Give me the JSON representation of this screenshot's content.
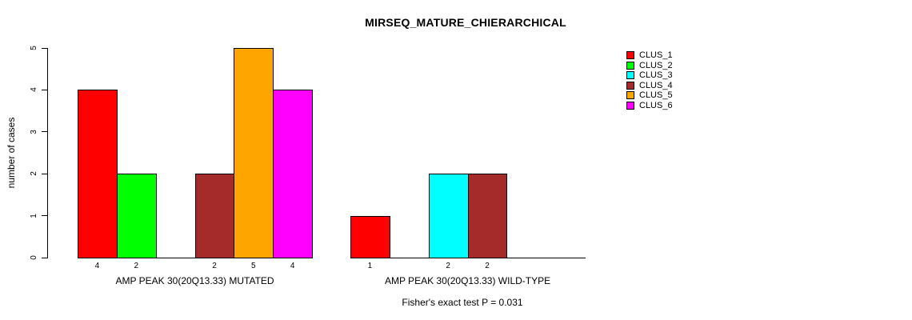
{
  "chart_data": {
    "type": "bar",
    "title": "MIRSEQ_MATURE_CHIERARCHICAL",
    "ylabel": "number of cases",
    "ylim": [
      0,
      5
    ],
    "yticks": [
      0,
      1,
      2,
      3,
      4,
      5
    ],
    "grid": false,
    "legend_position": "top-right",
    "categories": [
      "AMP PEAK 30(20Q13.33) MUTATED",
      "AMP PEAK 30(20Q13.33) WILD-TYPE"
    ],
    "series": [
      {
        "name": "CLUS_1",
        "color": "#FF0000",
        "values": [
          4,
          1
        ]
      },
      {
        "name": "CLUS_2",
        "color": "#00FF00",
        "values": [
          2,
          0
        ]
      },
      {
        "name": "CLUS_3",
        "color": "#00FFFF",
        "values": [
          0,
          2
        ]
      },
      {
        "name": "CLUS_4",
        "color": "#A52A2A",
        "values": [
          2,
          2
        ]
      },
      {
        "name": "CLUS_5",
        "color": "#FFA500",
        "values": [
          5,
          0
        ]
      },
      {
        "name": "CLUS_6",
        "color": "#FF00FF",
        "values": [
          4,
          0
        ]
      }
    ],
    "bar_value_labels": [
      [
        "4",
        "2",
        "",
        "2",
        "5",
        "4"
      ],
      [
        "1",
        "",
        "2",
        "2",
        "",
        ""
      ]
    ],
    "annotation": "Fisher's exact test P = 0.031",
    "axis_color": "#000000",
    "background_color": "#FFFFFF"
  }
}
